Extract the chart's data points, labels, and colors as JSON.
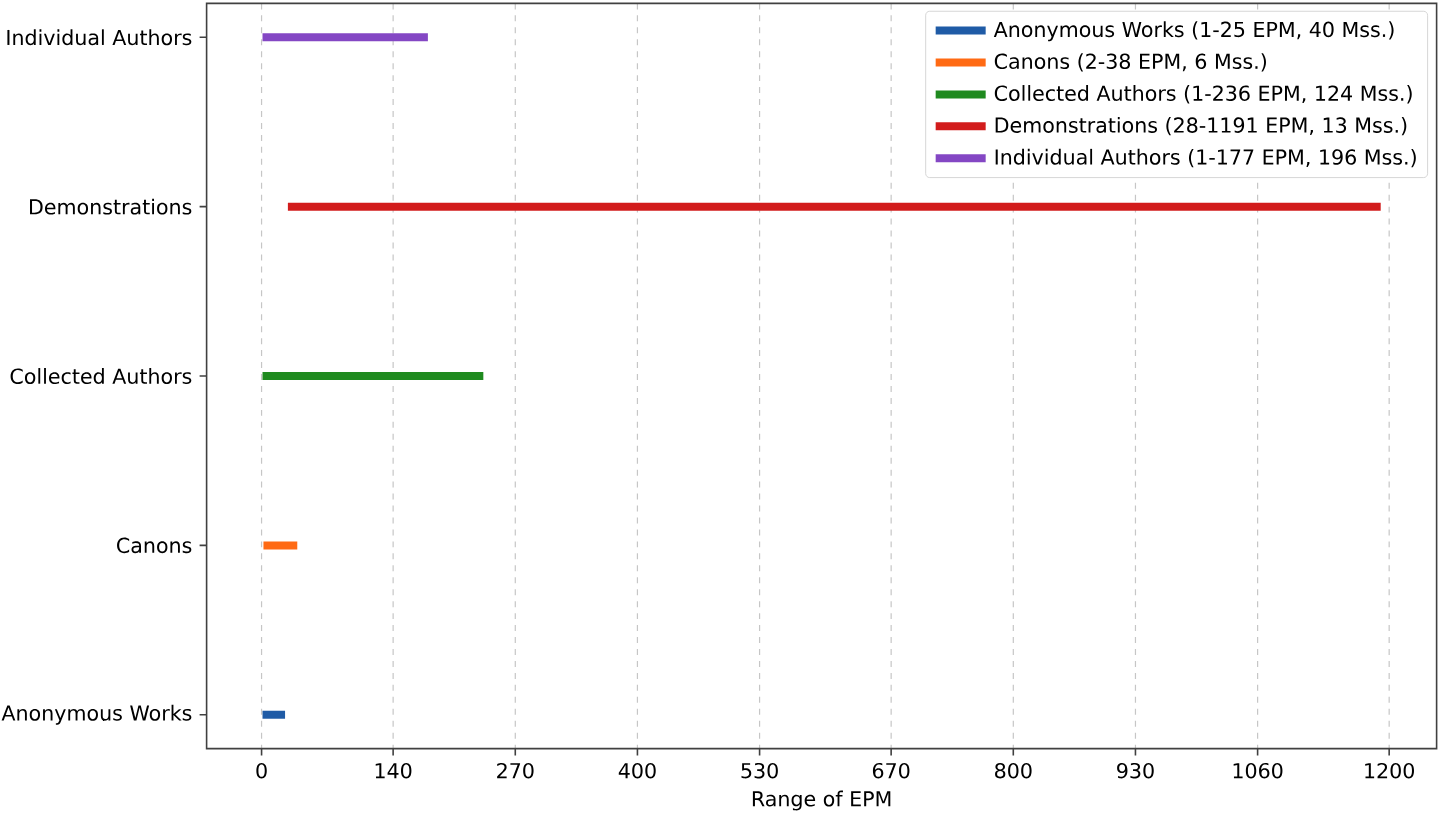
{
  "chart_data": {
    "type": "bar",
    "orientation": "horizontal",
    "xlabel": "Range of EPM",
    "categories": [
      "Individual Authors",
      "Demonstrations",
      "Collected Authors",
      "Canons",
      "Anonymous Works"
    ],
    "series": [
      {
        "name": "Anonymous Works (1-25 EPM, 40 Mss.)",
        "color": "#1f5ba6",
        "values": [
          null,
          null,
          null,
          null,
          24
        ],
        "base": [
          null,
          null,
          null,
          null,
          1
        ]
      },
      {
        "name": "Canons (2-38 EPM, 6 Mss.)",
        "color": "#ff6a14",
        "values": [
          null,
          null,
          null,
          36,
          null
        ],
        "base": [
          null,
          null,
          null,
          2,
          null
        ]
      },
      {
        "name": "Collected Authors (1-236 EPM, 124 Mss.)",
        "color": "#1f8a1f",
        "values": [
          null,
          null,
          235,
          null,
          null
        ],
        "base": [
          null,
          null,
          1,
          null,
          null
        ]
      },
      {
        "name": "Demonstrations (28-1191 EPM, 13 Mss.)",
        "color": "#d21c1c",
        "values": [
          null,
          1163,
          null,
          null,
          null
        ],
        "base": [
          null,
          28,
          null,
          null,
          null
        ]
      },
      {
        "name": "Individual Authors (1-177 EPM, 196 Mss.)",
        "color": "#8447c4",
        "values": [
          176,
          null,
          null,
          null,
          null
        ],
        "base": [
          1,
          null,
          null,
          null,
          null
        ]
      }
    ],
    "xlim": [
      -58.5,
      1250.5
    ],
    "xticks": [
      0,
      140,
      270,
      400,
      530,
      670,
      800,
      930,
      1060,
      1200
    ],
    "grid": "x",
    "legend": "top right"
  }
}
